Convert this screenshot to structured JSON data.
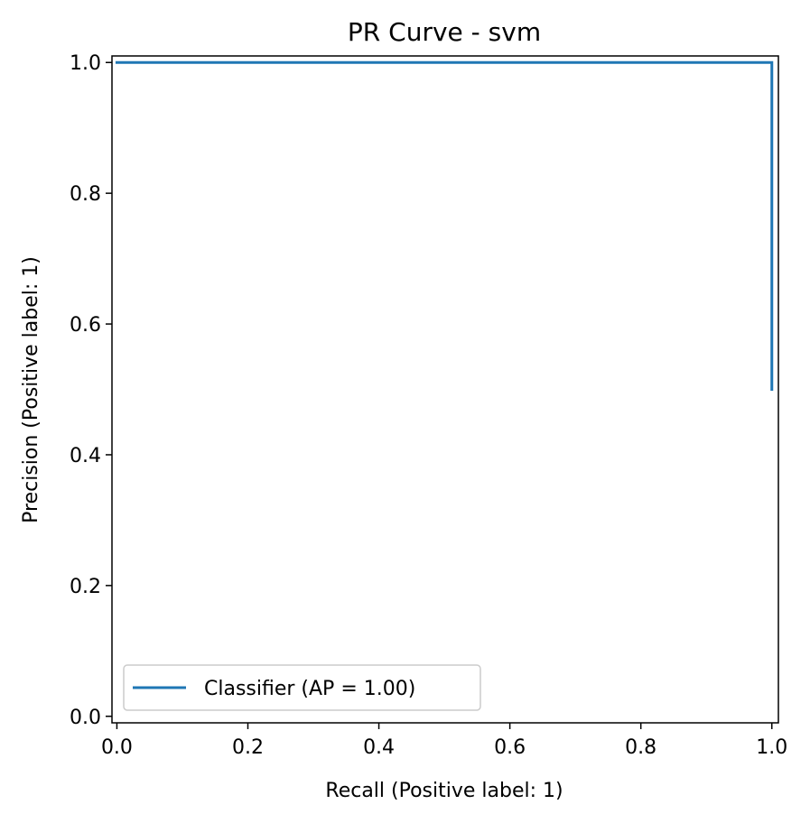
{
  "chart_data": {
    "type": "line",
    "title": "PR Curve - svm",
    "xlabel": "Recall (Positive label: 1)",
    "ylabel": "Precision (Positive label: 1)",
    "xlim": [
      -0.0075,
      1.01
    ],
    "ylim": [
      -0.01,
      1.01
    ],
    "x_ticks": [
      0.0,
      0.2,
      0.4,
      0.6,
      0.8,
      1.0
    ],
    "x_tick_labels": [
      "0.0",
      "0.2",
      "0.4",
      "0.6",
      "0.8",
      "1.0"
    ],
    "y_ticks": [
      0.0,
      0.2,
      0.4,
      0.6,
      0.8,
      1.0
    ],
    "y_tick_labels": [
      "0.0",
      "0.2",
      "0.4",
      "0.6",
      "0.8",
      "1.0"
    ],
    "grid": false,
    "legend": {
      "position": "lower-left"
    },
    "series": [
      {
        "name": "Classifier (AP = 1.00)",
        "color": "#1f77b4",
        "step": "post",
        "x": [
          0.0,
          1.0,
          1.0
        ],
        "y": [
          1.0,
          1.0,
          0.5
        ]
      }
    ]
  }
}
